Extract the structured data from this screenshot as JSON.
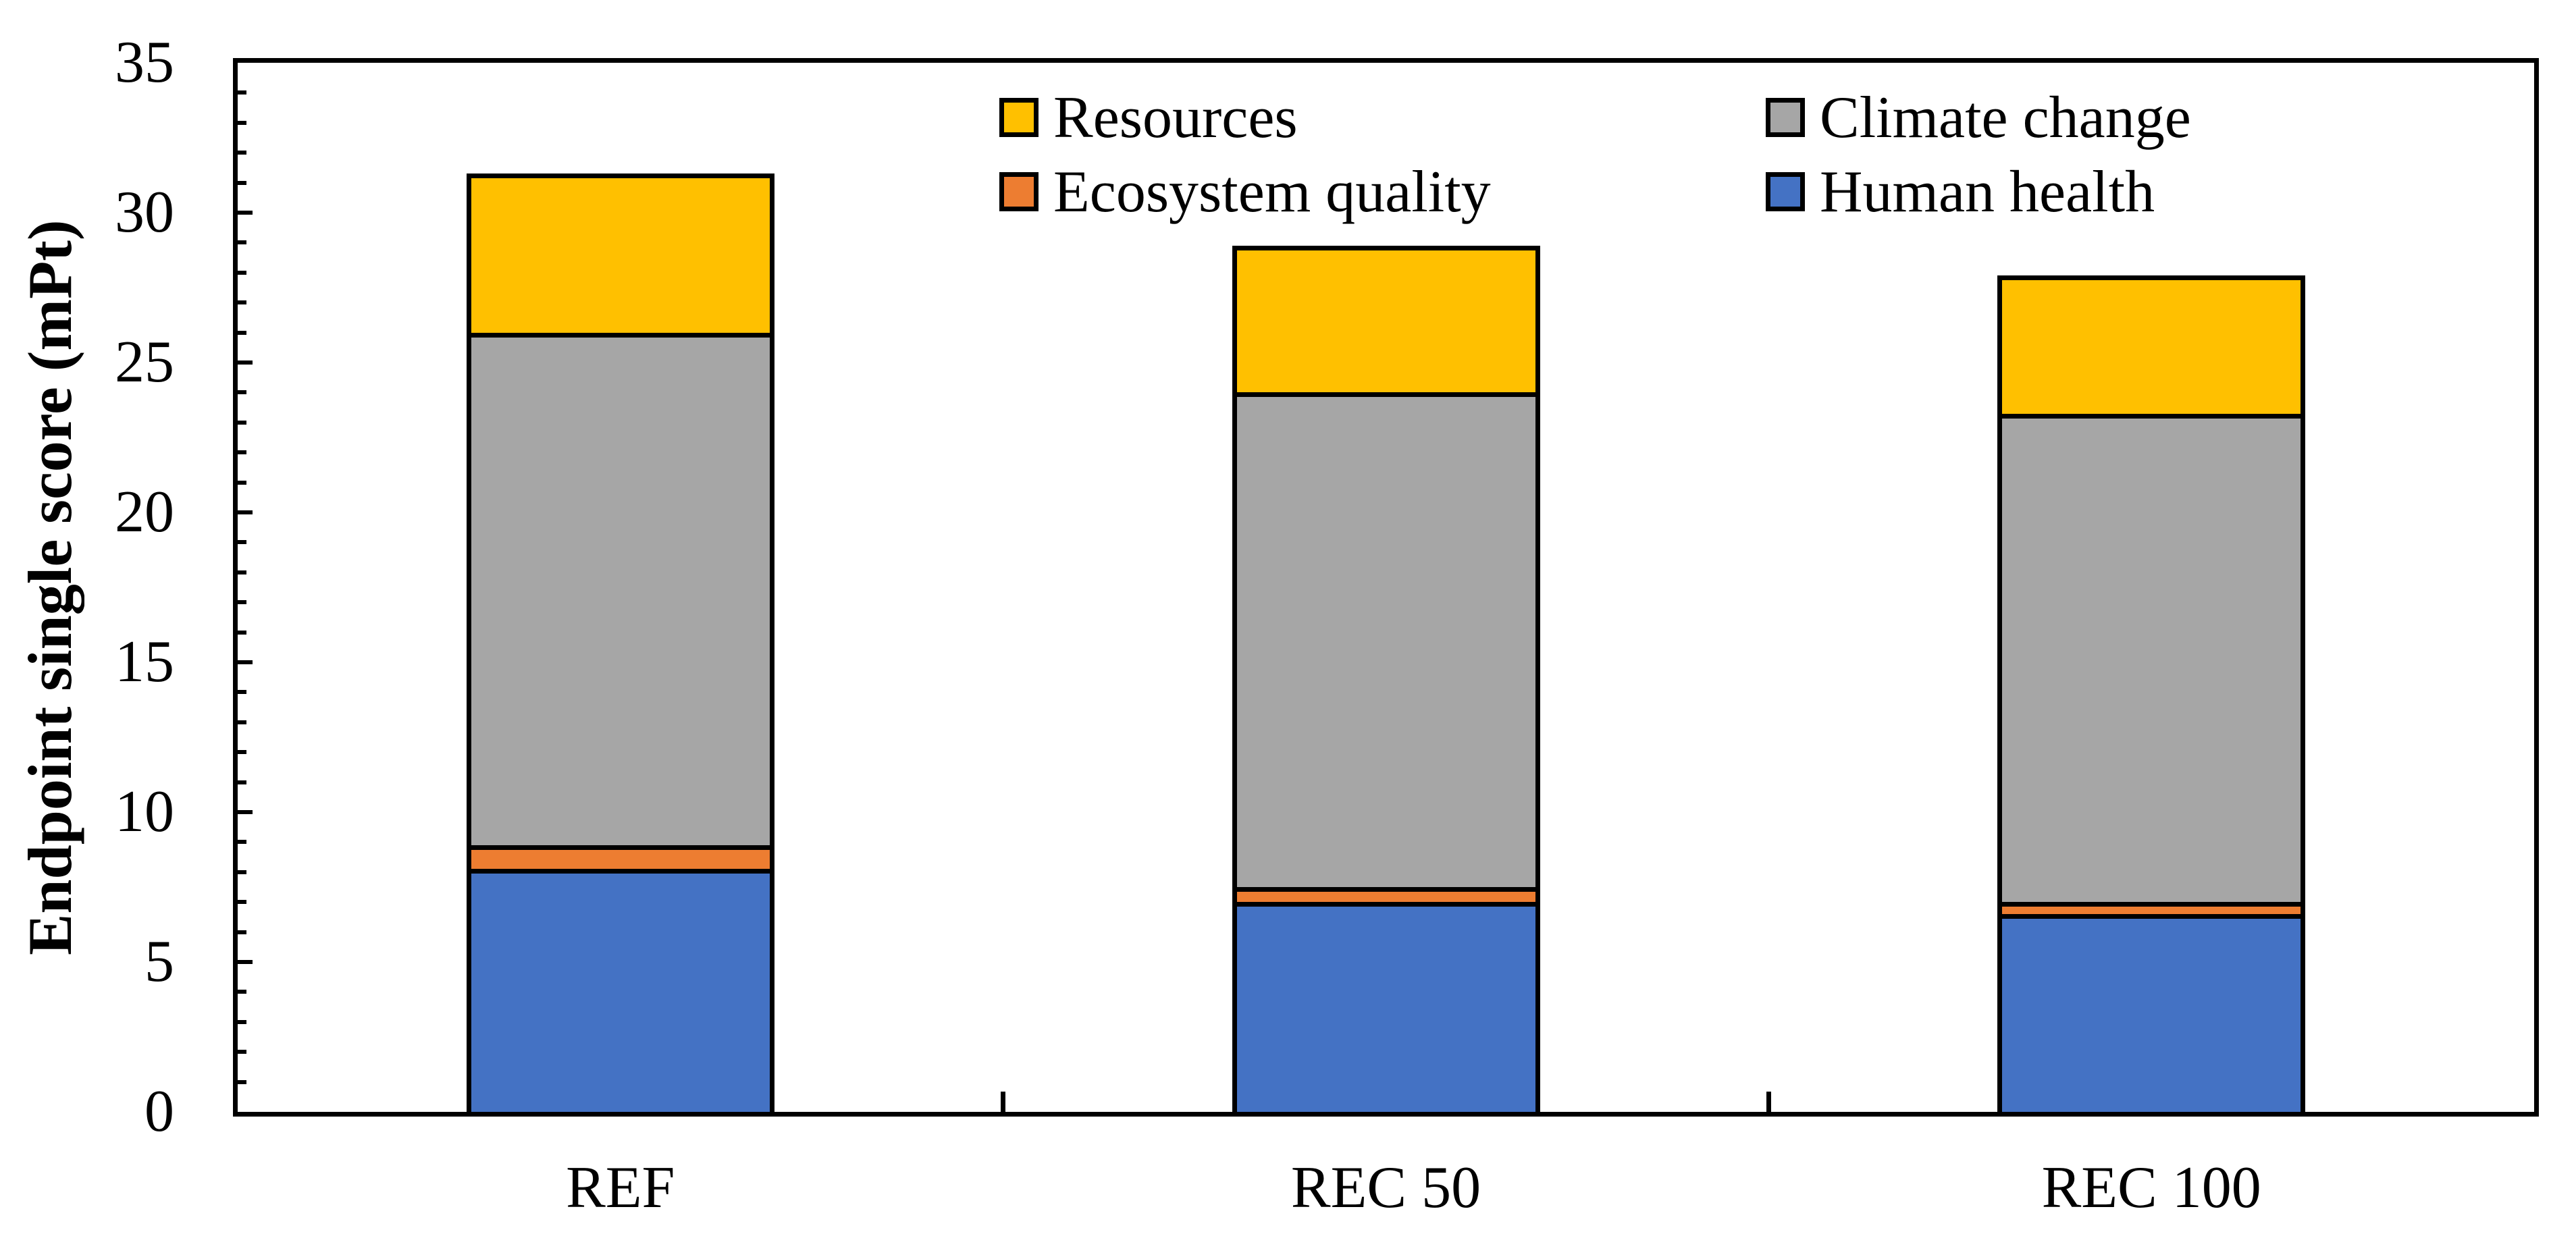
{
  "figure": {
    "background": "#ffffff",
    "frame_color": "#000000"
  },
  "y_axis": {
    "title": "Endpoint single score (mPt)",
    "tick_labels": [
      "0",
      "5",
      "10",
      "15",
      "20",
      "25",
      "30",
      "35"
    ],
    "min": 0,
    "max": 35,
    "major_step": 5,
    "minor_step": 1
  },
  "x_axis": {
    "categories": [
      "REF",
      "REC 50",
      "REC 100"
    ]
  },
  "legend": {
    "items": [
      {
        "label": "Resources",
        "color": "#FFC000"
      },
      {
        "label": "Climate change",
        "color": "#A6A6A6"
      },
      {
        "label": "Ecosystem quality",
        "color": "#ED7D31"
      },
      {
        "label": "Human health",
        "color": "#4472C4"
      }
    ]
  },
  "chart_data": {
    "type": "bar",
    "stacked": true,
    "categories": [
      "REF",
      "REC 50",
      "REC 100"
    ],
    "series": [
      {
        "name": "Human health",
        "color": "#4472C4",
        "values": [
          8.1,
          7.0,
          6.6
        ]
      },
      {
        "name": "Ecosystem quality",
        "color": "#ED7D31",
        "values": [
          0.8,
          0.5,
          0.4
        ]
      },
      {
        "name": "Climate change",
        "color": "#A6A6A6",
        "values": [
          17.1,
          16.5,
          16.3
        ]
      },
      {
        "name": "Resources",
        "color": "#FFC000",
        "values": [
          5.3,
          4.9,
          4.6
        ]
      }
    ],
    "ylabel": "Endpoint single score (mPt)",
    "ylim": [
      0,
      35
    ],
    "grid": false,
    "legend_position": "top-inside",
    "bar_border_color": "#000000",
    "tick_direction": "inside"
  }
}
